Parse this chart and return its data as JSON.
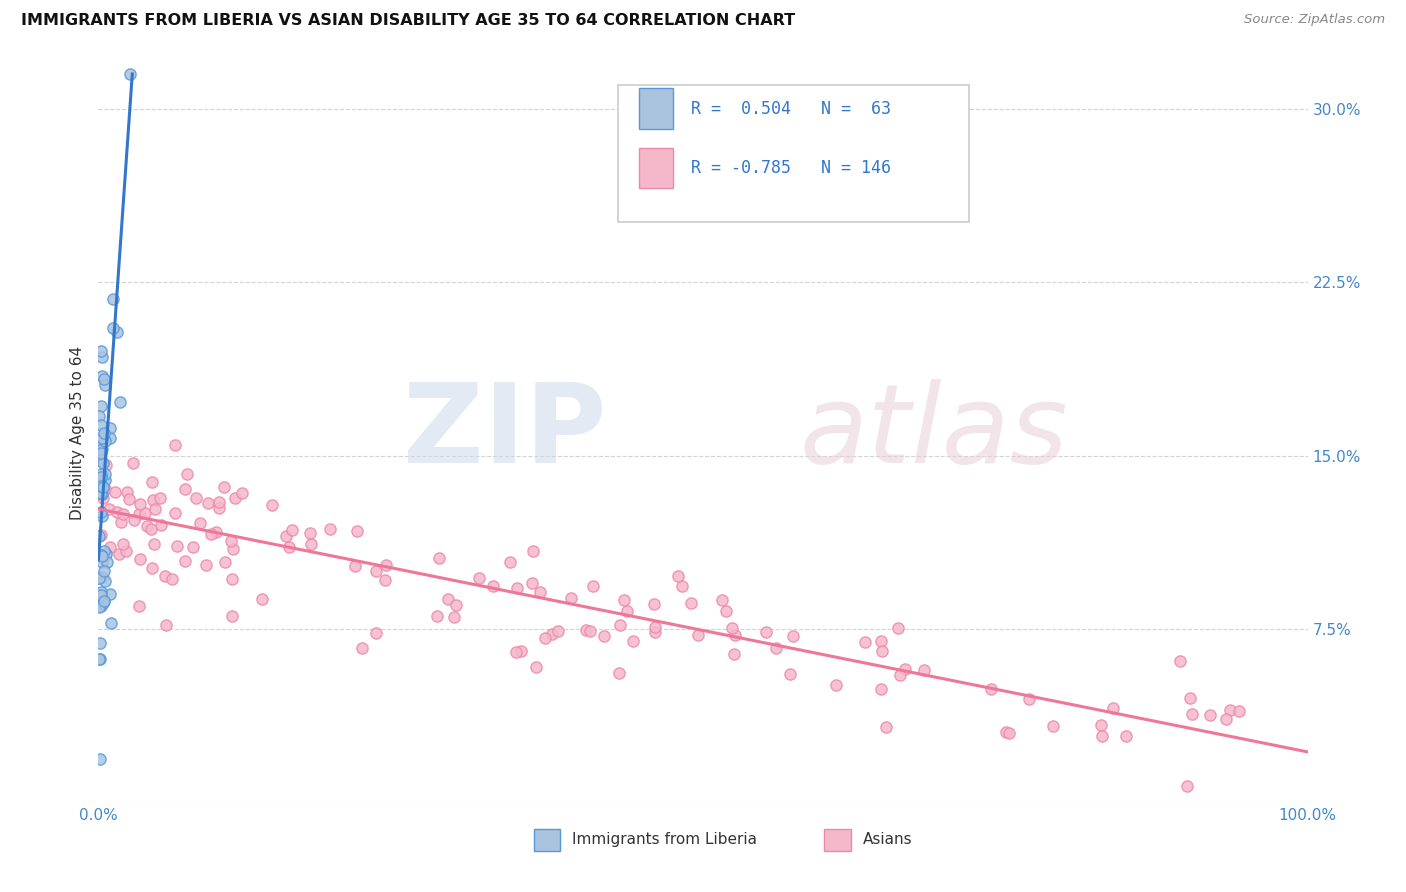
{
  "title": "IMMIGRANTS FROM LIBERIA VS ASIAN DISABILITY AGE 35 TO 64 CORRELATION CHART",
  "source": "Source: ZipAtlas.com",
  "ylabel": "Disability Age 35 to 64",
  "xlim": [
    0.0,
    1.0
  ],
  "ylim": [
    0.0,
    0.32
  ],
  "color_liberia_fill": "#aac4e0",
  "color_liberia_edge": "#5599dd",
  "color_asian_fill": "#f5b8ca",
  "color_asian_edge": "#ee88aa",
  "color_liberia_line": "#3377cc",
  "color_asian_line": "#ee7799",
  "color_ticks": "#4488cc",
  "background": "#ffffff",
  "grid_color": "#c8c8c8",
  "legend_text_color": "#3377cc"
}
